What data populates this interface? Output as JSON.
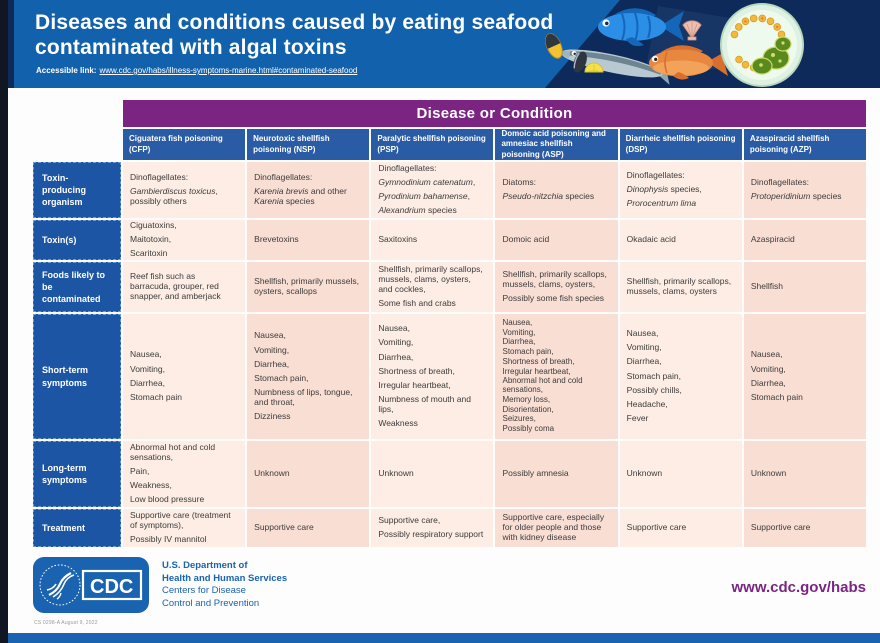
{
  "colors": {
    "header_blue": "#1261ad",
    "navy": "#0d2a5a",
    "purple": "#7b2482",
    "col_head_blue": "#2a5ca6",
    "row_label_blue": "#1c55a4",
    "cell_light": "#fdede4",
    "cell_dark": "#f9ded4",
    "footer_blue": "#1a63b0"
  },
  "header": {
    "title_line1": "Diseases and conditions caused by eating seafood",
    "title_line2": "contaminated with algal toxins",
    "accessible_label": "Accessible link:",
    "accessible_url": "www.cdc.gov/habs/illness-symptoms-marine.html#contaminated-seafood",
    "illustration_icons": [
      "blue-fish",
      "orange-fish",
      "barracuda-fish",
      "mussels",
      "lemon-wedge",
      "scallop-shell",
      "algae-petri-dish"
    ]
  },
  "table": {
    "banner": "Disease or Condition",
    "columns": [
      "Ciguatera fish poisoning (CFP)",
      "Neurotoxic shellfish poisoning (NSP)",
      "Paralytic shellfish poisoning (PSP)",
      "Domoic acid poisoning and amnesiac shellfish poisoning (ASP)",
      "Diarrheic shellfish poisoning (DSP)",
      "Azaspiracid shellfish poisoning (AZP)"
    ],
    "rows": [
      {
        "label": "Toxin-producing organism",
        "cells": [
          [
            [
              "Dinoflagellates:"
            ],
            [
              {
                "t": "Gambierdiscus toxicus",
                "i": true
              },
              ", possibly others"
            ]
          ],
          [
            [
              "Dinoflagellates:"
            ],
            [
              {
                "t": "Karenia brevis",
                "i": true
              },
              " and other ",
              {
                "t": "Karenia",
                "i": true
              },
              " species"
            ]
          ],
          [
            [
              "Dinoflagellates:"
            ],
            [
              {
                "t": "Gymnodinium catenatum",
                "i": true
              },
              ","
            ],
            [
              {
                "t": "Pyrodinium bahamense",
                "i": true
              },
              ","
            ],
            [
              {
                "t": "Alexandrium",
                "i": true
              },
              " species"
            ]
          ],
          [
            [
              "Diatoms:"
            ],
            [
              {
                "t": "Pseudo-nitzchia",
                "i": true
              },
              " species"
            ]
          ],
          [
            [
              "Dinoflagellates:"
            ],
            [
              {
                "t": "Dinophysis",
                "i": true
              },
              " species,"
            ],
            [
              {
                "t": "Prorocentrum lima",
                "i": true
              }
            ]
          ],
          [
            [
              "Dinoflagellates:"
            ],
            [
              {
                "t": "Protoperidinium",
                "i": true
              },
              " species"
            ]
          ]
        ]
      },
      {
        "label": "Toxin(s)",
        "cells": [
          [
            [
              "Ciguatoxins,"
            ],
            [
              "Maitotoxin,"
            ],
            [
              "Scaritoxin"
            ]
          ],
          [
            [
              "Brevetoxins"
            ]
          ],
          [
            [
              "Saxitoxins"
            ]
          ],
          [
            [
              "Domoic acid"
            ]
          ],
          [
            [
              "Okadaic acid"
            ]
          ],
          [
            [
              "Azaspiracid"
            ]
          ]
        ]
      },
      {
        "label": "Foods likely to be contaminated",
        "cells": [
          [
            [
              "Reef fish such as barracuda, grouper, red snapper, and amberjack"
            ]
          ],
          [
            [
              "Shellfish, primarily mussels, oysters, scallops"
            ]
          ],
          [
            [
              "Shellfish, primarily scallops, mussels, clams, oysters, and cockles,"
            ],
            [
              "Some fish and crabs"
            ]
          ],
          [
            [
              "Shellfish, primarily scallops, mussels, clams, oysters,"
            ],
            [
              "Possibly some fish species"
            ]
          ],
          [
            [
              "Shellfish, primarily scallops, mussels, clams, oysters"
            ]
          ],
          [
            [
              "Shellfish"
            ]
          ]
        ]
      },
      {
        "label": "Short-term symptoms",
        "cells": [
          [
            [
              "Nausea,"
            ],
            [
              "Vomiting,"
            ],
            [
              "Diarrhea,"
            ],
            [
              "Stomach pain"
            ]
          ],
          [
            [
              "Nausea,"
            ],
            [
              "Vomiting,"
            ],
            [
              "Diarrhea,"
            ],
            [
              "Stomach pain,"
            ],
            [
              "Numbness of lips, tongue, and throat,"
            ],
            [
              "Dizziness"
            ]
          ],
          [
            [
              "Nausea,"
            ],
            [
              "Vomiting,"
            ],
            [
              "Diarrhea,"
            ],
            [
              "Shortness of breath,"
            ],
            [
              "Irregular heartbeat,"
            ],
            [
              "Numbness of mouth and lips,"
            ],
            [
              "Weakness"
            ]
          ],
          [
            [
              "Nausea,"
            ],
            [
              "Vomiting,"
            ],
            [
              "Diarrhea,"
            ],
            [
              "Stomach pain,"
            ],
            [
              "Shortness of breath,"
            ],
            [
              "Irregular heartbeat,"
            ],
            [
              "Abnormal hot and cold sensations,"
            ],
            [
              "Memory loss,"
            ],
            [
              "Disorientation,"
            ],
            [
              "Seizures,"
            ],
            [
              "Possibly coma"
            ]
          ],
          [
            [
              "Nausea,"
            ],
            [
              "Vomiting,"
            ],
            [
              "Diarrhea,"
            ],
            [
              "Stomach pain,"
            ],
            [
              "Possibly chills,"
            ],
            [
              "Headache,"
            ],
            [
              "Fever"
            ]
          ],
          [
            [
              "Nausea,"
            ],
            [
              "Vomiting,"
            ],
            [
              "Diarrhea,"
            ],
            [
              "Stomach pain"
            ]
          ]
        ]
      },
      {
        "label": "Long-term symptoms",
        "cells": [
          [
            [
              "Abnormal hot and cold sensations,"
            ],
            [
              "Pain,"
            ],
            [
              "Weakness,"
            ],
            [
              "Low blood pressure"
            ]
          ],
          [
            [
              "Unknown"
            ]
          ],
          [
            [
              "Unknown"
            ]
          ],
          [
            [
              "Possibly amnesia"
            ]
          ],
          [
            [
              "Unknown"
            ]
          ],
          [
            [
              "Unknown"
            ]
          ]
        ]
      },
      {
        "label": "Treatment",
        "cells": [
          [
            [
              "Supportive care (treatment of symptoms),"
            ],
            [
              "Possibly IV mannitol"
            ]
          ],
          [
            [
              "Supportive care"
            ]
          ],
          [
            [
              "Supportive care,"
            ],
            [
              "Possibly respiratory support"
            ]
          ],
          [
            [
              "Supportive care, especially for older people and those with kidney disease"
            ]
          ],
          [
            [
              "Supportive care"
            ]
          ],
          [
            [
              "Supportive care"
            ]
          ]
        ]
      }
    ]
  },
  "footer": {
    "cdc_logo_text": "CDC",
    "dept_line1": "U.S. Department of",
    "dept_line2": "Health and Human Services",
    "org_line1": "Centers for Disease",
    "org_line2": "Control and Prevention",
    "code_text": "CS 0298-A    August 9, 2022",
    "site_url": "www.cdc.gov/habs"
  }
}
